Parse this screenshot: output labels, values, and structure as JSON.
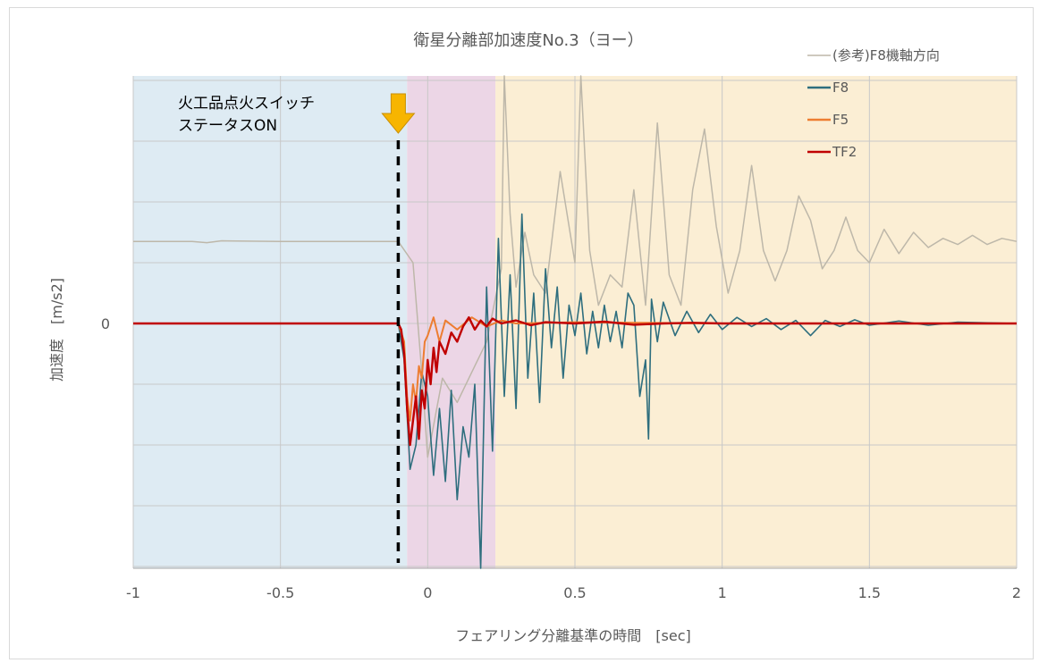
{
  "chart_data": {
    "type": "line",
    "title": "衛星分離部加速度No.3（ヨー）",
    "xlabel": "フェアリング分離基準の時間　[sec]",
    "ylabel": "加速度　[m/s2]",
    "xlim": [
      -1,
      2
    ],
    "x_ticks": [
      "-1",
      "-0.5",
      "0",
      "0.5",
      "1",
      "1.5",
      "2"
    ],
    "y_ticks": [
      "0"
    ],
    "grid": true,
    "legend_position": "top-right",
    "series": [
      {
        "name": "(参考)F8機軸方向",
        "color": "#bdb7a9",
        "offset": 1.35,
        "x": [
          -1.0,
          -0.8,
          -0.75,
          -0.7,
          -0.5,
          -0.1,
          -0.05,
          -0.02,
          0.0,
          0.05,
          0.1,
          0.15,
          0.2,
          0.25,
          0.26,
          0.28,
          0.3,
          0.33,
          0.36,
          0.4,
          0.45,
          0.5,
          0.52,
          0.55,
          0.58,
          0.62,
          0.66,
          0.7,
          0.74,
          0.78,
          0.82,
          0.86,
          0.9,
          0.94,
          0.98,
          1.02,
          1.06,
          1.1,
          1.14,
          1.18,
          1.22,
          1.26,
          1.3,
          1.34,
          1.38,
          1.42,
          1.46,
          1.5,
          1.55,
          1.6,
          1.65,
          1.7,
          1.75,
          1.8,
          1.85,
          1.9,
          1.95,
          2.0
        ],
        "y": [
          1.35,
          1.35,
          1.33,
          1.36,
          1.35,
          1.35,
          1.0,
          -0.8,
          -2.2,
          -0.9,
          -1.3,
          -0.8,
          -0.3,
          0.9,
          4.1,
          1.8,
          0.6,
          1.5,
          0.8,
          0.5,
          2.5,
          1.0,
          4.1,
          1.2,
          0.3,
          0.8,
          0.6,
          2.2,
          0.3,
          3.3,
          0.8,
          0.3,
          2.2,
          3.2,
          1.6,
          0.5,
          1.2,
          2.6,
          1.2,
          0.7,
          1.2,
          2.1,
          1.7,
          0.9,
          1.2,
          1.75,
          1.2,
          1.0,
          1.55,
          1.15,
          1.5,
          1.25,
          1.4,
          1.3,
          1.45,
          1.3,
          1.4,
          1.35
        ]
      },
      {
        "name": "F8",
        "color": "#2e6e7e",
        "x": [
          -1.0,
          -0.5,
          -0.1,
          -0.08,
          -0.06,
          -0.04,
          -0.02,
          0.0,
          0.02,
          0.04,
          0.06,
          0.08,
          0.1,
          0.12,
          0.14,
          0.16,
          0.18,
          0.2,
          0.22,
          0.24,
          0.26,
          0.28,
          0.3,
          0.32,
          0.34,
          0.36,
          0.38,
          0.4,
          0.42,
          0.44,
          0.46,
          0.48,
          0.5,
          0.52,
          0.54,
          0.56,
          0.58,
          0.6,
          0.62,
          0.64,
          0.66,
          0.68,
          0.7,
          0.72,
          0.74,
          0.75,
          0.76,
          0.78,
          0.8,
          0.84,
          0.88,
          0.92,
          0.96,
          1.0,
          1.05,
          1.1,
          1.15,
          1.2,
          1.25,
          1.3,
          1.35,
          1.4,
          1.45,
          1.5,
          1.6,
          1.7,
          1.8,
          1.9,
          2.0
        ],
        "y": [
          0.0,
          0.0,
          0.0,
          -0.6,
          -2.4,
          -2.0,
          -0.8,
          -1.2,
          -2.5,
          -1.4,
          -2.6,
          -1.1,
          -2.9,
          -1.7,
          -2.2,
          -1.0,
          -4.1,
          0.6,
          -2.1,
          1.4,
          -1.2,
          0.8,
          -1.4,
          1.8,
          -0.9,
          0.5,
          -1.3,
          0.9,
          -0.4,
          0.6,
          -0.9,
          0.3,
          -0.2,
          0.5,
          -0.5,
          0.2,
          -0.4,
          0.3,
          -0.3,
          0.2,
          -0.4,
          0.5,
          0.3,
          -1.2,
          -0.6,
          -1.9,
          0.4,
          -0.3,
          0.35,
          -0.2,
          0.2,
          -0.15,
          0.15,
          -0.1,
          0.1,
          -0.05,
          0.08,
          -0.1,
          0.05,
          -0.2,
          0.05,
          -0.05,
          0.06,
          -0.03,
          0.04,
          -0.03,
          0.02,
          0.01,
          0.0
        ]
      },
      {
        "name": "F5",
        "color": "#ed7d31",
        "x": [
          -1.0,
          -0.5,
          -0.1,
          -0.08,
          -0.07,
          -0.06,
          -0.05,
          -0.04,
          -0.03,
          -0.02,
          -0.01,
          0.0,
          0.02,
          0.04,
          0.06,
          0.1,
          0.15,
          0.2,
          0.25,
          0.3,
          0.5,
          1.0,
          1.5,
          2.0
        ],
        "y": [
          0.0,
          0.0,
          0.0,
          -0.3,
          -1.2,
          -1.6,
          -1.0,
          -1.3,
          -0.7,
          -0.9,
          -0.3,
          -0.2,
          0.1,
          -0.3,
          0.05,
          -0.1,
          0.1,
          -0.05,
          0.05,
          0.0,
          0.02,
          0.0,
          0.0,
          0.0
        ]
      },
      {
        "name": "TF2",
        "color": "#c00000",
        "x": [
          -1.0,
          -0.5,
          -0.1,
          -0.09,
          -0.08,
          -0.07,
          -0.06,
          -0.05,
          -0.04,
          -0.03,
          -0.02,
          -0.01,
          0.0,
          0.01,
          0.02,
          0.03,
          0.04,
          0.06,
          0.08,
          0.1,
          0.12,
          0.14,
          0.16,
          0.18,
          0.2,
          0.22,
          0.25,
          0.3,
          0.35,
          0.4,
          0.5,
          0.6,
          0.7,
          0.8,
          0.9,
          1.0,
          1.2,
          1.5,
          1.8,
          2.0
        ],
        "y": [
          0.0,
          0.0,
          0.0,
          -0.1,
          -0.5,
          -1.4,
          -2.0,
          -1.6,
          -1.2,
          -1.9,
          -1.1,
          -1.4,
          -0.6,
          -1.0,
          -0.4,
          -0.8,
          -0.3,
          -0.5,
          -0.15,
          -0.3,
          -0.05,
          0.1,
          -0.1,
          0.05,
          -0.05,
          0.08,
          0.0,
          0.05,
          -0.03,
          0.02,
          0.0,
          0.03,
          -0.02,
          0.0,
          0.01,
          0.0,
          0.0,
          0.0,
          0.0,
          0.0
        ]
      }
    ],
    "regions": [
      {
        "x": [
          -1,
          -0.07
        ],
        "color": "#deebf3"
      },
      {
        "x": [
          -0.07,
          0.23
        ],
        "color": "#ecd6e6"
      },
      {
        "x": [
          0.23,
          2
        ],
        "color": "#fbeed4"
      }
    ],
    "annotation": {
      "lines": [
        "火工品点火スイッチ",
        "ステータスON"
      ],
      "x": -0.1,
      "arrow_color": "#f7b500"
    }
  }
}
